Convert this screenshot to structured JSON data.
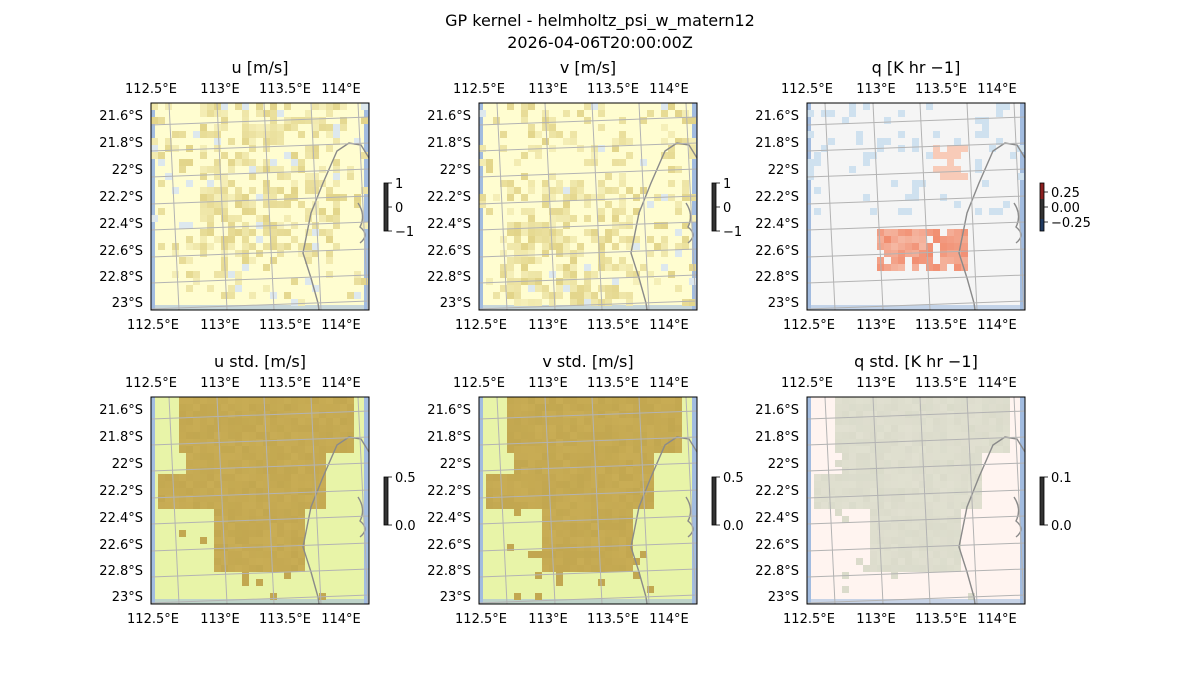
{
  "figure": {
    "title_line1": "GP kernel - helmholtz_psi_w_matern12",
    "title_line2": "2026-04-06T20:00:00Z"
  },
  "colors": {
    "ocean": "#a2bce0",
    "coast": "#8a8a8a",
    "grid": "#b3b3b3",
    "frame": "#000000"
  },
  "chart_data": [
    {
      "id": "u",
      "type": "heatmap",
      "title": "u [m/s]",
      "x_ticks": [
        "112.5°E",
        "113°E",
        "113.5°E",
        "114°E"
      ],
      "y_ticks": [
        "21.6°S",
        "21.8°S",
        "22°S",
        "22.2°S",
        "22.4°S",
        "22.6°S",
        "22.8°S",
        "23°S"
      ],
      "colormap": "RdYlBu-like (yellow/olive)",
      "colorbar": {
        "ticks": [
          "1",
          "0",
          "−1"
        ],
        "range": [
          -1,
          1
        ]
      },
      "pattern": "weak positive speckle over most of domain",
      "bg_color": "#fffdd0",
      "fill_color": "#d8c670"
    },
    {
      "id": "v",
      "type": "heatmap",
      "title": "v [m/s]",
      "x_ticks": [
        "112.5°E",
        "113°E",
        "113.5°E",
        "114°E"
      ],
      "y_ticks": [
        "21.6°S",
        "21.8°S",
        "22°S",
        "22.2°S",
        "22.4°S",
        "22.6°S",
        "22.8°S",
        "23°S"
      ],
      "colormap": "RdYlBu-like (yellow/olive)",
      "colorbar": {
        "ticks": [
          "1",
          "0",
          "−1"
        ],
        "range": [
          -1,
          1
        ]
      },
      "pattern": "weak positive speckle, denser in south",
      "bg_color": "#fffdd0",
      "fill_color": "#d8c670"
    },
    {
      "id": "q",
      "type": "heatmap",
      "title": "q [K hr −1]",
      "x_ticks": [
        "112.5°E",
        "113°E",
        "113.5°E",
        "114°E"
      ],
      "y_ticks": [
        "21.6°S",
        "21.8°S",
        "22°S",
        "22.2°S",
        "22.4°S",
        "22.6°S",
        "22.8°S",
        "23°S"
      ],
      "colormap": "RdBu_r",
      "colorbar": {
        "ticks": [
          "0.25",
          "0.00",
          "−0.25"
        ],
        "range": [
          -0.35,
          0.35
        ]
      },
      "pattern": "positive band near 22.6°S, light blue patches north",
      "bg_color": "#f5f5f5",
      "fill_color": "#f08060"
    },
    {
      "id": "u_std",
      "type": "heatmap",
      "title": "u std. [m/s]",
      "x_ticks": [
        "112.5°E",
        "113°E",
        "113.5°E",
        "114°E"
      ],
      "y_ticks": [
        "21.6°S",
        "21.8°S",
        "22°S",
        "22.2°S",
        "22.4°S",
        "22.6°S",
        "22.8°S",
        "23°S"
      ],
      "colormap": "sequential (pale green to olive)",
      "colorbar": {
        "ticks": [
          "0.5",
          "0.0"
        ],
        "range": [
          0,
          0.5
        ]
      },
      "pattern": "high std. over large central region",
      "bg_color": "#e8f4a8",
      "fill_color": "#c9ad55"
    },
    {
      "id": "v_std",
      "type": "heatmap",
      "title": "v std. [m/s]",
      "x_ticks": [
        "112.5°E",
        "113°E",
        "113.5°E",
        "114°E"
      ],
      "y_ticks": [
        "21.6°S",
        "21.8°S",
        "22°S",
        "22.2°S",
        "22.4°S",
        "22.6°S",
        "22.8°S",
        "23°S"
      ],
      "colormap": "sequential (pale green to olive)",
      "colorbar": {
        "ticks": [
          "0.5",
          "0.0"
        ],
        "range": [
          0,
          0.5
        ]
      },
      "pattern": "high std. over large central region",
      "bg_color": "#e8f4a8",
      "fill_color": "#c9ad55"
    },
    {
      "id": "q_std",
      "type": "heatmap",
      "title": "q std. [K hr −1]",
      "x_ticks": [
        "112.5°E",
        "113°E",
        "113.5°E",
        "114°E"
      ],
      "y_ticks": [
        "21.6°S",
        "21.8°S",
        "22°S",
        "22.2°S",
        "22.4°S",
        "22.6°S",
        "22.8°S",
        "23°S"
      ],
      "colormap": "sequential (pale pink to grey-green)",
      "colorbar": {
        "ticks": [
          "0.1",
          "0.0"
        ],
        "range": [
          0,
          0.1
        ]
      },
      "pattern": "faint grey-green over central region",
      "bg_color": "#fff4f0",
      "fill_color": "#c8d0b8"
    }
  ]
}
